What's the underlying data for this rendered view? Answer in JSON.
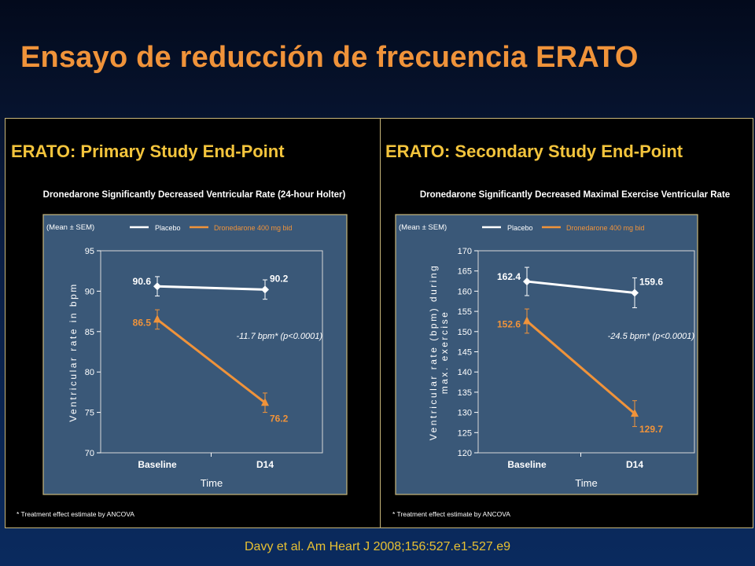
{
  "slide": {
    "title": "Ensayo de reducción de frecuencia ERATO",
    "citation": "Davy et al. Am Heart J 2008;156:527.e1-527.e9"
  },
  "colors": {
    "title": "#f0933a",
    "panel_heading": "#f3c43c",
    "plot_bg": "#3a5878",
    "placebo": "#ffffff",
    "dronedarone": "#f0933a"
  },
  "chart_data": [
    {
      "type": "line",
      "heading": "ERATO: Primary Study End-Point",
      "title": "Dronedarone Significantly Decreased Ventricular Rate (24-hour Holter)",
      "stats_note": "(Mean ± SEM)",
      "xlabel": "Time",
      "ylabel": "Ventricular rate in bpm",
      "categories": [
        "Baseline",
        "D14"
      ],
      "ylim": [
        70,
        95
      ],
      "yticks": [
        70,
        75,
        80,
        85,
        90,
        95
      ],
      "series": [
        {
          "name": "Placebo",
          "values": [
            90.6,
            90.2
          ],
          "labels": [
            "90.6",
            "90.2"
          ],
          "err": [
            1.2,
            1.2
          ],
          "marker": "diamond"
        },
        {
          "name": "Dronedarone 400 mg bid",
          "values": [
            86.5,
            76.2
          ],
          "labels": [
            "86.5",
            "76.2"
          ],
          "err": [
            1.2,
            1.2
          ],
          "marker": "triangle"
        }
      ],
      "annotation": "-11.7 bpm*  (p<0.0001)",
      "footnote": "* Treatment effect estimate by ANCOVA",
      "grid": false,
      "legend": "top"
    },
    {
      "type": "line",
      "heading": "ERATO: Secondary Study End-Point",
      "title": "Dronedarone Significantly Decreased Maximal Exercise Ventricular Rate",
      "stats_note": "(Mean ± SEM)",
      "xlabel": "Time",
      "ylabel": "Ventricular rate (bpm) during max. exercise",
      "categories": [
        "Baseline",
        "D14"
      ],
      "ylim": [
        120,
        170
      ],
      "yticks": [
        120,
        125,
        130,
        135,
        140,
        145,
        150,
        155,
        160,
        165,
        170
      ],
      "series": [
        {
          "name": "Placebo",
          "values": [
            162.4,
            159.6
          ],
          "labels": [
            "162.4",
            "159.6"
          ],
          "err": [
            3.5,
            3.7
          ],
          "marker": "diamond"
        },
        {
          "name": "Dronedarone 400 mg bid",
          "values": [
            152.6,
            129.7
          ],
          "labels": [
            "152.6",
            "129.7"
          ],
          "err": [
            3.0,
            3.2
          ],
          "marker": "triangle"
        }
      ],
      "annotation": "-24.5 bpm*  (p<0.0001)",
      "footnote": "* Treatment effect estimate by ANCOVA",
      "grid": false,
      "legend": "top"
    }
  ]
}
